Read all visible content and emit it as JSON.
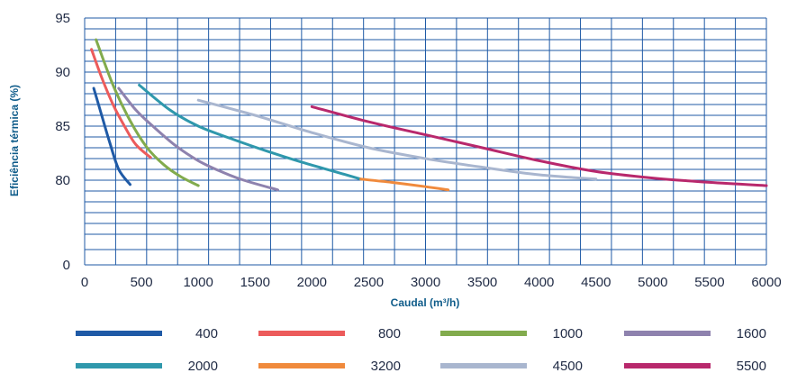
{
  "chart_data": {
    "type": "line",
    "title": "",
    "xlabel": "Caudal (m³/h)",
    "ylabel": "Eficiência térmica (%)",
    "xlim": [
      0,
      6000
    ],
    "ylim": [
      0,
      95
    ],
    "y_scale": "broken",
    "x_ticks": [
      0,
      500,
      1000,
      1500,
      2000,
      2500,
      3000,
      3500,
      4000,
      4500,
      5000,
      5500,
      6000
    ],
    "y_ticks": [
      0,
      80,
      85,
      90,
      95
    ],
    "grid": true,
    "legend_position": "bottom",
    "series": [
      {
        "name": "400",
        "color": "#1f5aa6",
        "points": [
          [
            80,
            88.5
          ],
          [
            150,
            86.0
          ],
          [
            220,
            83.5
          ],
          [
            300,
            81.0
          ],
          [
            400,
            79.6
          ]
        ]
      },
      {
        "name": "800",
        "color": "#ec5b5b",
        "points": [
          [
            60,
            92.1
          ],
          [
            150,
            89.5
          ],
          [
            250,
            87.0
          ],
          [
            350,
            85.0
          ],
          [
            450,
            83.3
          ],
          [
            580,
            82.1
          ]
        ]
      },
      {
        "name": "1000",
        "color": "#82ab4d",
        "points": [
          [
            100,
            93.0
          ],
          [
            250,
            88.8
          ],
          [
            400,
            85.5
          ],
          [
            550,
            83.0
          ],
          [
            700,
            81.4
          ],
          [
            850,
            80.3
          ],
          [
            1000,
            79.5
          ]
        ]
      },
      {
        "name": "1600",
        "color": "#8e82ae",
        "points": [
          [
            300,
            88.5
          ],
          [
            450,
            86.5
          ],
          [
            600,
            85.0
          ],
          [
            800,
            83.2
          ],
          [
            1000,
            81.8
          ],
          [
            1200,
            80.8
          ],
          [
            1400,
            80.0
          ],
          [
            1700,
            79.1
          ]
        ]
      },
      {
        "name": "2000",
        "color": "#2f98ac",
        "points": [
          [
            480,
            88.8
          ],
          [
            750,
            86.5
          ],
          [
            1000,
            85.0
          ],
          [
            1300,
            83.8
          ],
          [
            1600,
            82.7
          ],
          [
            1900,
            81.7
          ],
          [
            2200,
            80.8
          ],
          [
            2430,
            80.1
          ]
        ]
      },
      {
        "name": "3200",
        "color": "#f08a3c",
        "points": [
          [
            2430,
            80.1
          ],
          [
            2700,
            79.8
          ],
          [
            3000,
            79.4
          ],
          [
            3200,
            79.1
          ]
        ]
      },
      {
        "name": "4500",
        "color": "#a9b6cf",
        "points": [
          [
            1000,
            87.4
          ],
          [
            1500,
            86.0
          ],
          [
            2000,
            84.4
          ],
          [
            2500,
            83.0
          ],
          [
            3000,
            82.0
          ],
          [
            3500,
            81.2
          ],
          [
            4000,
            80.5
          ],
          [
            4500,
            80.1
          ]
        ]
      },
      {
        "name": "5500",
        "color": "#b8286c",
        "points": [
          [
            2000,
            86.8
          ],
          [
            2500,
            85.4
          ],
          [
            3000,
            84.2
          ],
          [
            3500,
            83.0
          ],
          [
            4000,
            81.8
          ],
          [
            4500,
            80.8
          ],
          [
            5000,
            80.2
          ],
          [
            5500,
            79.8
          ],
          [
            6000,
            79.5
          ]
        ]
      }
    ]
  },
  "style": {
    "grid_color": "#1f5aa6",
    "text_color": "#1f2a44",
    "axis_label_color": "#0f5c8a"
  }
}
